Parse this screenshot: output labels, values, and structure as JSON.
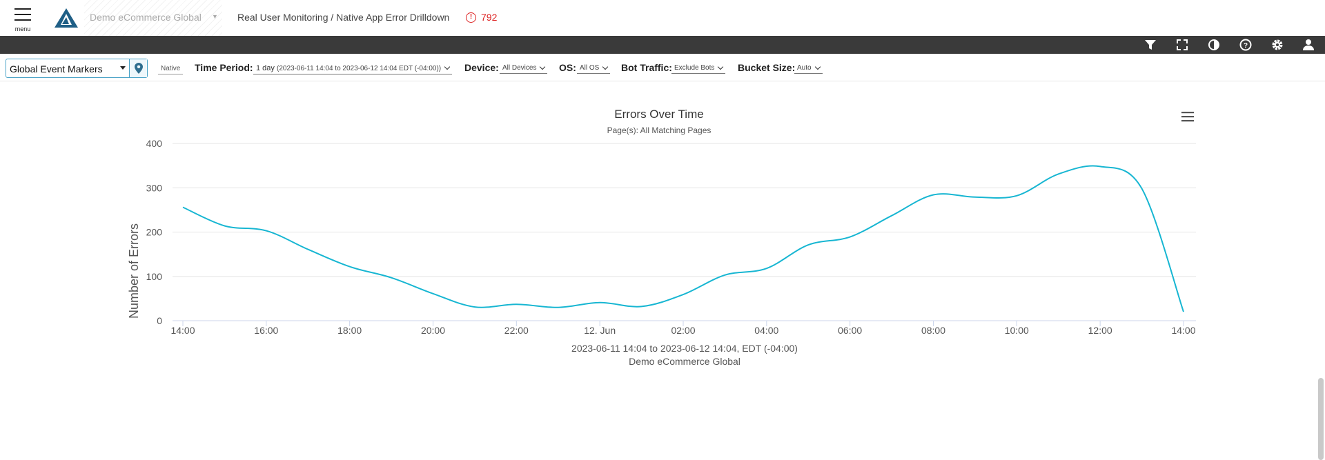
{
  "header": {
    "menu_label": "menu",
    "site_name": "Demo eCommerce Global",
    "page_title": "Real User Monitoring / Native App Error Drilldown",
    "error_count": "792",
    "alert_color": "#dd2222"
  },
  "toolbar": {
    "icons": [
      "filter-icon",
      "fullscreen-icon",
      "contrast-icon",
      "help-icon",
      "settings-icon",
      "user-icon"
    ]
  },
  "filters": {
    "event_markers": "Global Event Markers",
    "platform": "Native",
    "time_period_label": "Time Period:",
    "time_period_value": "1 day",
    "time_period_range": "(2023-06-11 14:04 to 2023-06-12 14:04 EDT (-04:00))",
    "device_label": "Device:",
    "device_value": "All Devices",
    "os_label": "OS:",
    "os_value": "All OS",
    "bot_label": "Bot Traffic:",
    "bot_value": "Exclude Bots",
    "bucket_label": "Bucket Size:",
    "bucket_value": "Auto"
  },
  "chart_data": {
    "type": "line",
    "title": "Errors Over Time",
    "subtitle": "Page(s): All Matching Pages",
    "ylabel": "Number of Errors",
    "xlabel_line1": "2023-06-11 14:04 to 2023-06-12 14:04, EDT (-04:00)",
    "xlabel_line2": "Demo eCommerce Global",
    "ylim": [
      0,
      400
    ],
    "yticks": [
      "0",
      "100",
      "200",
      "300",
      "400"
    ],
    "xticks": [
      "14:00",
      "16:00",
      "18:00",
      "20:00",
      "22:00",
      "12. Jun",
      "02:00",
      "04:00",
      "06:00",
      "08:00",
      "10:00",
      "12:00",
      "14:00"
    ],
    "line_color": "#17b6d2",
    "grid": true,
    "legend": "none",
    "series": [
      {
        "x": [
          "14:00",
          "15:00",
          "16:00",
          "17:00",
          "18:00",
          "19:00",
          "20:00",
          "21:00",
          "22:00",
          "23:00",
          "00:00",
          "01:00",
          "02:00",
          "03:00",
          "04:00",
          "05:00",
          "06:00",
          "07:00",
          "08:00",
          "09:00",
          "10:00",
          "11:00",
          "12:00",
          "13:00",
          "14:00"
        ],
        "values": [
          256,
          214,
          203,
          161,
          122,
          97,
          61,
          31,
          37,
          30,
          41,
          32,
          59,
          103,
          118,
          171,
          189,
          237,
          284,
          279,
          282,
          331,
          348,
          298,
          20
        ]
      }
    ]
  }
}
